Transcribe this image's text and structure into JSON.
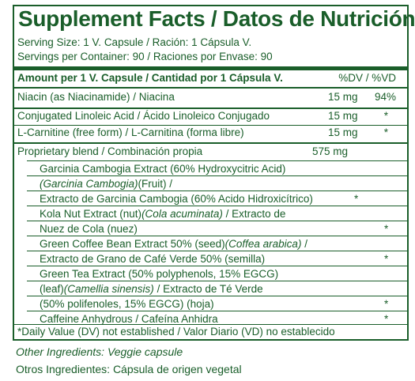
{
  "title": "Supplement Facts / Datos de Nutrición",
  "serving_size": "Serving Size: 1 V. Capsule / Ración: 1 Cápsula V.",
  "servings_per_container": "Servings per Container: 90 / Raciones por Envase: 90",
  "header": {
    "amount": "Amount per 1 V. Capsule / Cantidad por 1 Cápsula V.",
    "dv": "%DV / %VD"
  },
  "nutrients": [
    {
      "name": "Niacin (as Niacinamide) / Niacina",
      "amount": "15 mg",
      "dv": "94%"
    },
    {
      "name": "Conjugated Linoleic Acid / Ácido Linoleico Conjugado",
      "amount": "15 mg",
      "dv": "*"
    },
    {
      "name": "L-Carnitine (free form) / L-Carnitina (forma libre)",
      "amount": "15 mg",
      "dv": "*"
    }
  ],
  "blend": {
    "name": "Proprietary blend / Combinación propia",
    "amount": "575 mg",
    "lines": [
      {
        "a": "Garcinia Cambogia Extract (60% Hydroxycitric Acid)"
      },
      {
        "i": "(Garcinia Cambogia)",
        "a": "(Fruit) /"
      },
      {
        "a": "Extracto de Garcinia Cambogia (60% Acido Hidroxicítrico)",
        "star": "*"
      },
      {
        "a": "Kola Nut Extract (nut)",
        "i": "(Cola acuminata)",
        "b": " / Extracto de"
      },
      {
        "a": "Nuez de Cola (nuez)",
        "star": "*"
      },
      {
        "a": "Green Coffee Bean Extract 50% (seed)",
        "i": "(Coffea arabica)",
        "b": " /"
      },
      {
        "a": "Extracto de Grano de Café Verde 50% (semilla)",
        "star": "*"
      },
      {
        "a": "Green Tea Extract (50% polyphenols, 15% EGCG)"
      },
      {
        "a": "(leaf)",
        "i": "(Camellia sinensis)",
        "b": " / Extracto de Té Verde"
      },
      {
        "a": "(50% polifenoles, 15% EGCG) (hoja)",
        "star": "*"
      },
      {
        "a": "Caffeine Anhydrous / Cafeína Anhidra",
        "star": "*"
      }
    ]
  },
  "footnote": "*Daily Value (DV) not established / Valor Diario (VD) no establecido",
  "other_ingredients_en": "Other Ingredients: Veggie capsule",
  "other_ingredients_es": "Otros Ingredientes: Cápsula de origen vegetal",
  "colors": {
    "text": "#1a5e2a",
    "background": "#ffffff"
  }
}
